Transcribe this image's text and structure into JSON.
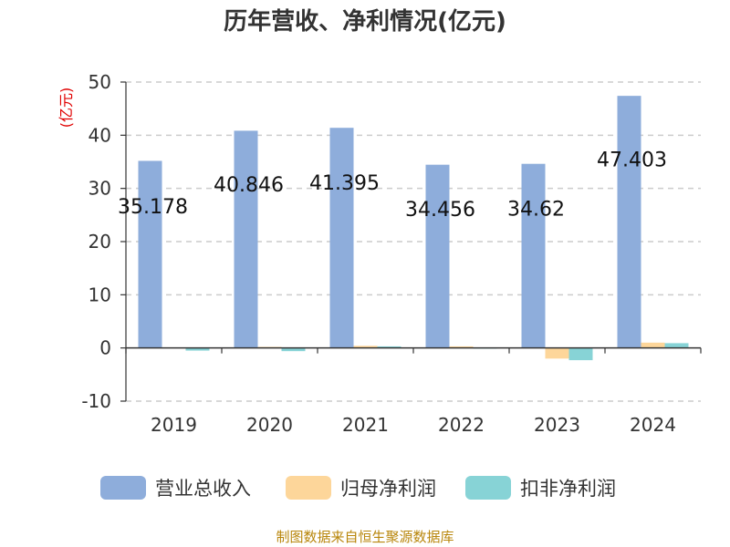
{
  "chart_data": {
    "type": "bar",
    "title": "历年营收、净利情况(亿元)",
    "ylabel": "(亿元)",
    "xlabel": "",
    "categories": [
      "2019",
      "2020",
      "2021",
      "2022",
      "2023",
      "2024"
    ],
    "ylim": [
      -10,
      50
    ],
    "yticks": [
      "-10",
      "0",
      "10",
      "20",
      "30",
      "40",
      "50"
    ],
    "grid": true,
    "legend_position": "bottom",
    "series": [
      {
        "name": "营业总收入",
        "color": "#8EADDB",
        "values": [
          35.178,
          40.846,
          41.395,
          34.456,
          34.62,
          47.403
        ],
        "data_labels": [
          "35.178",
          "40.846",
          "41.395",
          "34.456",
          "34.62",
          "47.403"
        ]
      },
      {
        "name": "归母净利润",
        "color": "#FDD69A",
        "values": [
          0.1,
          0.2,
          0.4,
          0.3,
          -2.0,
          1.0
        ]
      },
      {
        "name": "扣非净利润",
        "color": "#87D3D6",
        "values": [
          -0.5,
          -0.6,
          0.3,
          -0.1,
          -2.3,
          0.9
        ]
      }
    ]
  },
  "footer": {
    "source": "制图数据来自恒生聚源数据库"
  }
}
